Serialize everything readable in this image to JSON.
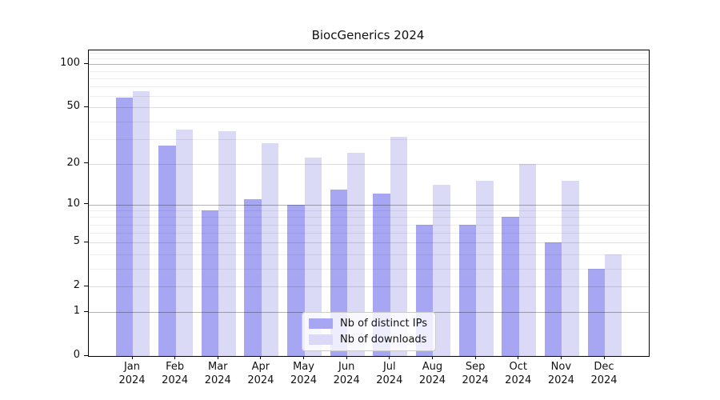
{
  "chart_data": {
    "type": "bar",
    "title": "BiocGenerics 2024",
    "x_tick_line1": [
      "Jan",
      "Feb",
      "Mar",
      "Apr",
      "May",
      "Jun",
      "Jul",
      "Aug",
      "Sep",
      "Oct",
      "Nov",
      "Dec"
    ],
    "x_tick_line2": "2024",
    "series": [
      {
        "name": "Nb of distinct IPs",
        "color": "#a6a6f2",
        "values": [
          59,
          27,
          9,
          11,
          10,
          13,
          12,
          7,
          7,
          8,
          5,
          3
        ]
      },
      {
        "name": "Nb of downloads",
        "color": "#dadaf7",
        "values": [
          65,
          35,
          34,
          28,
          22,
          24,
          31,
          14,
          15,
          20,
          15,
          4
        ]
      }
    ],
    "y_axis": {
      "scale": "log10(1+y)",
      "major_ticks": [
        0,
        1,
        2,
        5,
        10,
        20,
        50,
        100
      ],
      "power_ticks": [
        1,
        10,
        100
      ],
      "minor_gridlines": [
        3,
        4,
        6,
        7,
        8,
        9,
        30,
        40,
        60,
        70,
        80,
        90,
        110,
        120
      ],
      "ylim": [
        0,
        125
      ]
    },
    "legend": {
      "position": "lower center",
      "entries": [
        "Nb of distinct IPs",
        "Nb of downloads"
      ]
    },
    "grid": "both",
    "bar_width_fraction": 0.4,
    "colors": {
      "grid_power": "rgba(0,0,0,0.30)",
      "grid_mid": "rgba(0,0,0,0.13)",
      "grid_minor": "rgba(0,0,0,0.07)",
      "axis": "#000000",
      "background": "#ffffff"
    }
  }
}
